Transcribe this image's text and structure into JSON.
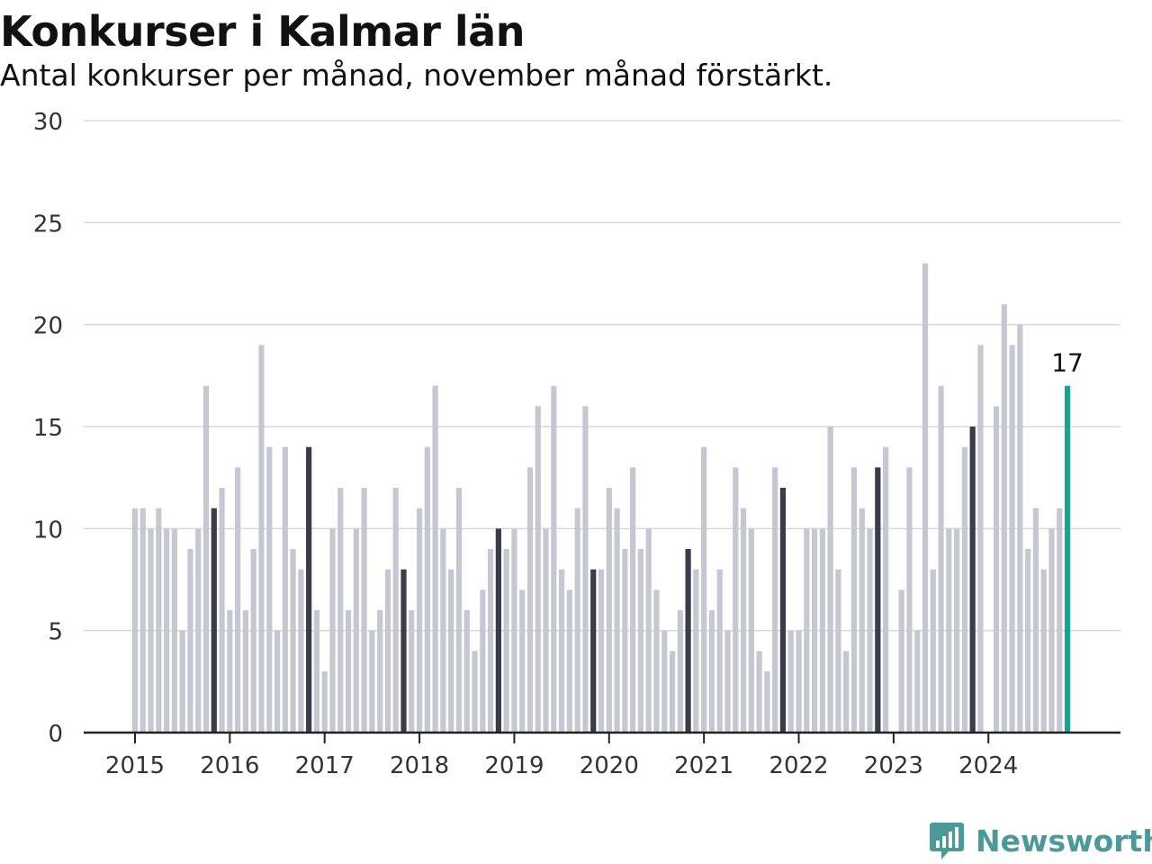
{
  "title": "Konkurser i Kalmar län",
  "subtitle": "Antal konkurser per månad, november månad förstärkt.",
  "brand": {
    "name": "Newsworthy",
    "icon": "newsworthy-logo-icon"
  },
  "colors": {
    "bar": "#c7c6d3",
    "highlight": "#3c3b4b",
    "latest": "#1aa394",
    "grid": "#d9d9d9",
    "axis": "#222222"
  },
  "chart_data": {
    "type": "bar",
    "ylim": [
      0,
      30
    ],
    "yticks": [
      0,
      5,
      10,
      15,
      20,
      25,
      30
    ],
    "xticks": [
      "2015",
      "2016",
      "2017",
      "2018",
      "2019",
      "2020",
      "2021",
      "2022",
      "2023",
      "2024"
    ],
    "highlight_month": 11,
    "start": "2015-01",
    "values": [
      11,
      11,
      10,
      11,
      10,
      10,
      5,
      9,
      10,
      17,
      11,
      12,
      6,
      13,
      6,
      9,
      19,
      14,
      5,
      14,
      9,
      8,
      14,
      6,
      3,
      10,
      12,
      6,
      10,
      12,
      5,
      6,
      8,
      12,
      8,
      6,
      11,
      14,
      17,
      10,
      8,
      12,
      6,
      4,
      7,
      9,
      10,
      9,
      10,
      7,
      13,
      16,
      10,
      17,
      8,
      7,
      11,
      16,
      8,
      8,
      12,
      11,
      9,
      13,
      9,
      10,
      7,
      5,
      4,
      6,
      9,
      8,
      14,
      6,
      8,
      5,
      13,
      11,
      10,
      4,
      3,
      13,
      12,
      5,
      5,
      10,
      10,
      10,
      15,
      8,
      4,
      13,
      11,
      10,
      13,
      14,
      0,
      7,
      13,
      5,
      23,
      8,
      17,
      10,
      10,
      14,
      15,
      19,
      0,
      16,
      21,
      19,
      20,
      9,
      11,
      8,
      10,
      11,
      17
    ],
    "last_value_label": "17"
  }
}
